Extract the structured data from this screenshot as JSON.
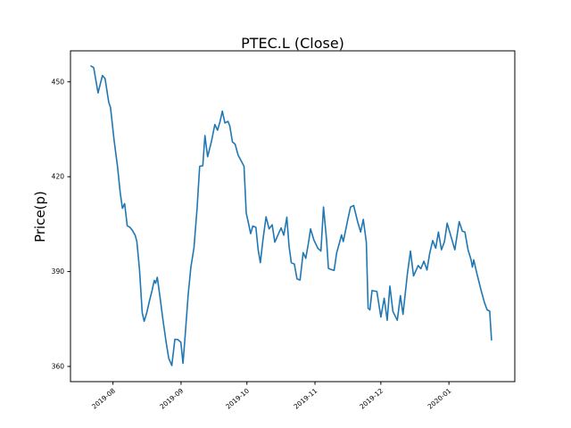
{
  "figure": {
    "title": "PTEC.L (Close)",
    "ylabel": "Price(p)",
    "line_color": "#1f77b4",
    "axis_color": "#000000",
    "background": "#ffffff"
  },
  "chart_data": {
    "type": "line",
    "title": "PTEC.L (Close)",
    "xlabel": "",
    "ylabel": "Price(p)",
    "series_name": "Close",
    "grid": false,
    "legend": "none",
    "x_unit": "days since 2019-07-22",
    "xlim": [
      -9.35,
      193
    ],
    "ylim": [
      355.2,
      459.8
    ],
    "x_ticks": [
      {
        "x": 10,
        "label": "2019-08"
      },
      {
        "x": 41,
        "label": "2019-09"
      },
      {
        "x": 71,
        "label": "2019-10"
      },
      {
        "x": 102,
        "label": "2019-11"
      },
      {
        "x": 132,
        "label": "2019-12"
      },
      {
        "x": 163,
        "label": "2020-01"
      }
    ],
    "y_ticks": [
      360,
      390,
      420,
      450
    ],
    "points": [
      [
        0.0,
        455
      ],
      [
        1.2,
        454.5
      ],
      [
        3.2,
        446.5
      ],
      [
        5.2,
        452
      ],
      [
        6.4,
        451
      ],
      [
        8.1,
        443.5
      ],
      [
        8.9,
        441.8
      ],
      [
        10.5,
        431.5
      ],
      [
        12.1,
        423
      ],
      [
        13.3,
        415
      ],
      [
        14.3,
        410
      ],
      [
        15.3,
        411.5
      ],
      [
        16.5,
        404.5
      ],
      [
        17.7,
        404
      ],
      [
        18.9,
        403
      ],
      [
        20.1,
        401.5
      ],
      [
        20.9,
        399.5
      ],
      [
        22.1,
        390.5
      ],
      [
        23.3,
        377
      ],
      [
        24.2,
        374.3
      ],
      [
        25.4,
        377
      ],
      [
        26.6,
        380.7
      ],
      [
        27.8,
        384
      ],
      [
        28.8,
        387.2
      ],
      [
        29.4,
        386.3
      ],
      [
        30.2,
        388.2
      ],
      [
        31.4,
        382
      ],
      [
        32.8,
        374.6
      ],
      [
        34.2,
        367.7
      ],
      [
        35.4,
        362.6
      ],
      [
        36.8,
        360.3
      ],
      [
        38.2,
        368.6
      ],
      [
        39.5,
        368.5
      ],
      [
        40.9,
        367.7
      ],
      [
        41.9,
        361
      ],
      [
        42.9,
        370
      ],
      [
        44.3,
        383
      ],
      [
        45.5,
        391.5
      ],
      [
        46.9,
        397.5
      ],
      [
        48.3,
        410
      ],
      [
        49.5,
        423.3
      ],
      [
        50.9,
        423.5
      ],
      [
        51.9,
        433
      ],
      [
        53.1,
        426.3
      ],
      [
        54.8,
        431
      ],
      [
        56.4,
        436.5
      ],
      [
        57.6,
        434.7
      ],
      [
        58.8,
        437.5
      ],
      [
        59.8,
        440.7
      ],
      [
        61.0,
        437
      ],
      [
        62.4,
        437.5
      ],
      [
        63.2,
        436
      ],
      [
        64.4,
        431
      ],
      [
        65.6,
        430.3
      ],
      [
        67.0,
        426.8
      ],
      [
        68.4,
        425
      ],
      [
        69.7,
        423.3
      ],
      [
        70.7,
        408.5
      ],
      [
        71.7,
        405.3
      ],
      [
        72.7,
        402
      ],
      [
        73.7,
        404.4
      ],
      [
        75.1,
        404
      ],
      [
        76.1,
        397
      ],
      [
        77.1,
        392.8
      ],
      [
        78.3,
        400
      ],
      [
        79.7,
        407.3
      ],
      [
        81.1,
        403.5
      ],
      [
        82.5,
        404.8
      ],
      [
        83.7,
        399.3
      ],
      [
        85.1,
        401.5
      ],
      [
        86.6,
        403.8
      ],
      [
        87.8,
        401.5
      ],
      [
        89.2,
        407.2
      ],
      [
        90.2,
        398
      ],
      [
        91.2,
        392.8
      ],
      [
        92.6,
        392.4
      ],
      [
        93.8,
        387.7
      ],
      [
        95.2,
        387.3
      ],
      [
        96.6,
        396
      ],
      [
        97.8,
        394.2
      ],
      [
        99.0,
        399
      ],
      [
        100.0,
        403.5
      ],
      [
        101.5,
        400
      ],
      [
        103.3,
        397.4
      ],
      [
        104.7,
        396.5
      ],
      [
        105.9,
        410.4
      ],
      [
        107.3,
        399.8
      ],
      [
        108.1,
        391
      ],
      [
        109.5,
        390.6
      ],
      [
        110.7,
        390.4
      ],
      [
        111.9,
        396
      ],
      [
        113.1,
        399
      ],
      [
        114.1,
        401.6
      ],
      [
        114.9,
        399.5
      ],
      [
        116.8,
        406
      ],
      [
        118.2,
        410.4
      ],
      [
        119.6,
        410.9
      ],
      [
        121.4,
        405.8
      ],
      [
        122.8,
        402.5
      ],
      [
        124.0,
        406.5
      ],
      [
        125.4,
        399.3
      ],
      [
        126.2,
        378.4
      ],
      [
        127.0,
        377.9
      ],
      [
        128.0,
        384
      ],
      [
        130.2,
        383.7
      ],
      [
        132.0,
        375.6
      ],
      [
        133.5,
        381.6
      ],
      [
        134.9,
        374.6
      ],
      [
        136.1,
        385.4
      ],
      [
        137.5,
        377.4
      ],
      [
        139.5,
        374.6
      ],
      [
        140.9,
        382.4
      ],
      [
        142.1,
        376.5
      ],
      [
        144.1,
        389.5
      ],
      [
        145.5,
        396.5
      ],
      [
        146.9,
        388.6
      ],
      [
        149.0,
        391.9
      ],
      [
        150.2,
        390.9
      ],
      [
        151.6,
        393.3
      ],
      [
        153.0,
        390.5
      ],
      [
        154.2,
        395.6
      ],
      [
        155.6,
        399.8
      ],
      [
        157.0,
        397.4
      ],
      [
        158.2,
        402.5
      ],
      [
        159.6,
        396.9
      ],
      [
        161.0,
        399.5
      ],
      [
        162.2,
        405.3
      ],
      [
        165.7,
        396.9
      ],
      [
        167.7,
        405.8
      ],
      [
        169.1,
        402.8
      ],
      [
        170.3,
        402.5
      ],
      [
        171.7,
        396.9
      ],
      [
        173.1,
        393.7
      ],
      [
        173.7,
        391.4
      ],
      [
        174.3,
        393.7
      ],
      [
        175.7,
        389.5
      ],
      [
        177.7,
        384
      ],
      [
        179.2,
        380.2
      ],
      [
        180.4,
        377.9
      ],
      [
        181.6,
        377.5
      ],
      [
        182.4,
        368.4
      ]
    ]
  }
}
